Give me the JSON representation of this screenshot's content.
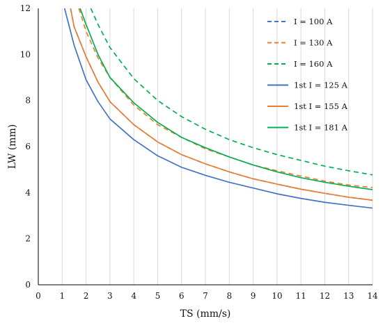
{
  "chart_data": {
    "type": "line",
    "xlabel": "TS (mm/s)",
    "ylabel": "LW (mm)",
    "xlim": [
      0,
      14
    ],
    "ylim": [
      0,
      12
    ],
    "xticks": [
      "0",
      "1",
      "2",
      "3",
      "4",
      "5",
      "6",
      "7",
      "8",
      "9",
      "10",
      "11",
      "12",
      "13",
      "14"
    ],
    "yticks": [
      "0",
      "2",
      "4",
      "6",
      "8",
      "10",
      "12"
    ],
    "grid": "vertical",
    "legend_position": "top-right",
    "series": [
      {
        "name": "I = 100 A",
        "color": "#4472c4",
        "style": "dashed",
        "a": 3.7,
        "k": 0.6,
        "x": [
          1.35,
          1.5,
          2,
          2.5,
          3,
          4,
          5,
          6,
          7,
          8,
          9,
          10,
          11,
          12,
          13,
          14
        ],
        "y": [
          12.0,
          11.2,
          9.9,
          8.8,
          7.95,
          6.95,
          6.2,
          5.65,
          5.25,
          4.9,
          4.6,
          4.37,
          4.15,
          3.97,
          3.8,
          3.67
        ]
      },
      {
        "name": "I = 130 A",
        "color": "#ed7d31",
        "style": "dashed",
        "a": 3.7,
        "k": 0.6,
        "x": [
          1.7,
          2,
          2.5,
          3,
          4,
          5,
          6,
          7,
          8,
          9,
          10,
          11,
          12,
          13,
          14
        ],
        "y": [
          12.0,
          11.0,
          9.85,
          9.0,
          7.8,
          6.95,
          6.4,
          5.9,
          5.55,
          5.2,
          4.95,
          4.72,
          4.5,
          4.33,
          4.22
        ]
      },
      {
        "name": "I = 160 A",
        "color": "#00b050",
        "style": "dashed",
        "a": 3.7,
        "k": 0.6,
        "x": [
          2.2,
          2.5,
          3,
          4,
          5,
          6,
          7,
          8,
          9,
          10,
          11,
          12,
          13,
          14
        ],
        "y": [
          12.0,
          11.3,
          10.3,
          8.95,
          8.0,
          7.3,
          6.75,
          6.3,
          5.95,
          5.65,
          5.4,
          5.15,
          4.95,
          4.77
        ]
      },
      {
        "name": "1st I = 125 A",
        "color": "#4472c4",
        "style": "solid",
        "a": 3.7,
        "k": 0.6,
        "x": [
          1.1,
          1.5,
          2,
          2.5,
          3,
          4,
          5,
          6,
          7,
          8,
          9,
          10,
          11,
          12,
          13,
          14
        ],
        "y": [
          12.0,
          10.4,
          8.9,
          7.95,
          7.2,
          6.3,
          5.6,
          5.1,
          4.75,
          4.45,
          4.2,
          3.95,
          3.75,
          3.58,
          3.45,
          3.33
        ]
      },
      {
        "name": "1st I = 155 A",
        "color": "#ed7d31",
        "style": "solid",
        "a": 3.7,
        "k": 0.6,
        "x": [
          1.35,
          1.5,
          2,
          2.5,
          3,
          4,
          5,
          6,
          7,
          8,
          9,
          10,
          11,
          12,
          13,
          14
        ],
        "y": [
          12.0,
          11.2,
          9.9,
          8.8,
          7.95,
          6.95,
          6.2,
          5.65,
          5.25,
          4.9,
          4.6,
          4.37,
          4.15,
          3.97,
          3.8,
          3.67
        ]
      },
      {
        "name": "1st I = 181 A",
        "color": "#00b050",
        "style": "solid",
        "a": 3.7,
        "k": 0.6,
        "x": [
          1.75,
          2,
          2.5,
          3,
          4,
          5,
          6,
          7,
          8,
          9,
          10,
          11,
          12,
          13,
          14
        ],
        "y": [
          12.0,
          11.3,
          10.0,
          9.0,
          7.9,
          7.05,
          6.4,
          5.95,
          5.55,
          5.2,
          4.9,
          4.65,
          4.45,
          4.28,
          4.13
        ]
      }
    ]
  }
}
